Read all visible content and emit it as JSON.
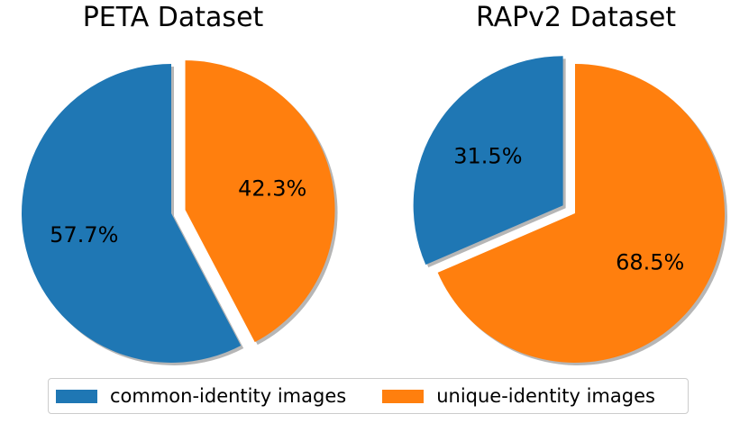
{
  "chart_data": [
    {
      "type": "pie",
      "title": "PETA Dataset",
      "categories": [
        "common-identity images",
        "unique-identity images"
      ],
      "values": [
        57.7,
        42.3
      ],
      "labels": [
        "57.7%",
        "42.3%"
      ],
      "colors": [
        "#1f77b4",
        "#ff7f0e"
      ],
      "exploded": "unique-identity images",
      "shadow": true
    },
    {
      "type": "pie",
      "title": "RAPv2 Dataset",
      "categories": [
        "common-identity images",
        "unique-identity images"
      ],
      "values": [
        31.5,
        68.5
      ],
      "labels": [
        "31.5%",
        "68.5%"
      ],
      "colors": [
        "#1f77b4",
        "#ff7f0e"
      ],
      "exploded": "common-identity images",
      "shadow": true
    }
  ],
  "legend": {
    "placement": "bottom",
    "items": [
      {
        "label": "common-identity images",
        "color": "#1f77b4"
      },
      {
        "label": "unique-identity images",
        "color": "#ff7f0e"
      }
    ]
  }
}
